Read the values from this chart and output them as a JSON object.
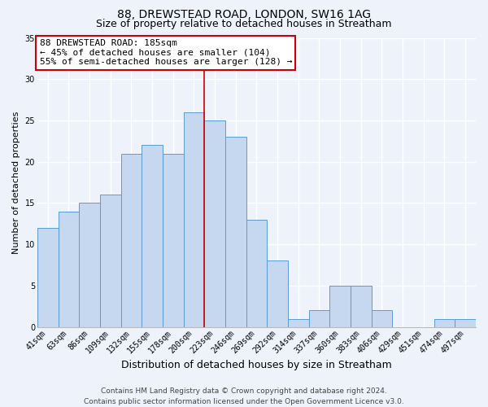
{
  "title": "88, DREWSTEAD ROAD, LONDON, SW16 1AG",
  "subtitle": "Size of property relative to detached houses in Streatham",
  "xlabel": "Distribution of detached houses by size in Streatham",
  "ylabel": "Number of detached properties",
  "categories": [
    "41sqm",
    "63sqm",
    "86sqm",
    "109sqm",
    "132sqm",
    "155sqm",
    "178sqm",
    "200sqm",
    "223sqm",
    "246sqm",
    "269sqm",
    "292sqm",
    "314sqm",
    "337sqm",
    "360sqm",
    "383sqm",
    "406sqm",
    "429sqm",
    "451sqm",
    "474sqm",
    "497sqm"
  ],
  "values": [
    12,
    14,
    15,
    16,
    21,
    22,
    21,
    26,
    25,
    23,
    13,
    8,
    1,
    2,
    5,
    5,
    2,
    0,
    0,
    1,
    1
  ],
  "bar_color": "#c5d8f0",
  "bar_edge_color": "#5b9bd5",
  "background_color": "#eef2fb",
  "grid_color": "#ffffff",
  "annotation_box_text": "88 DREWSTEAD ROAD: 185sqm\n← 45% of detached houses are smaller (104)\n55% of semi-detached houses are larger (128) →",
  "annotation_box_color": "#ffffff",
  "annotation_box_edge_color": "#cc0000",
  "vline_x": 7.5,
  "vline_color": "#cc0000",
  "ylim": [
    0,
    35
  ],
  "yticks": [
    0,
    5,
    10,
    15,
    20,
    25,
    30,
    35
  ],
  "footer": "Contains HM Land Registry data © Crown copyright and database right 2024.\nContains public sector information licensed under the Open Government Licence v3.0.",
  "title_fontsize": 10,
  "subtitle_fontsize": 9,
  "xlabel_fontsize": 9,
  "ylabel_fontsize": 8,
  "tick_fontsize": 7,
  "annotation_fontsize": 8,
  "footer_fontsize": 6.5
}
